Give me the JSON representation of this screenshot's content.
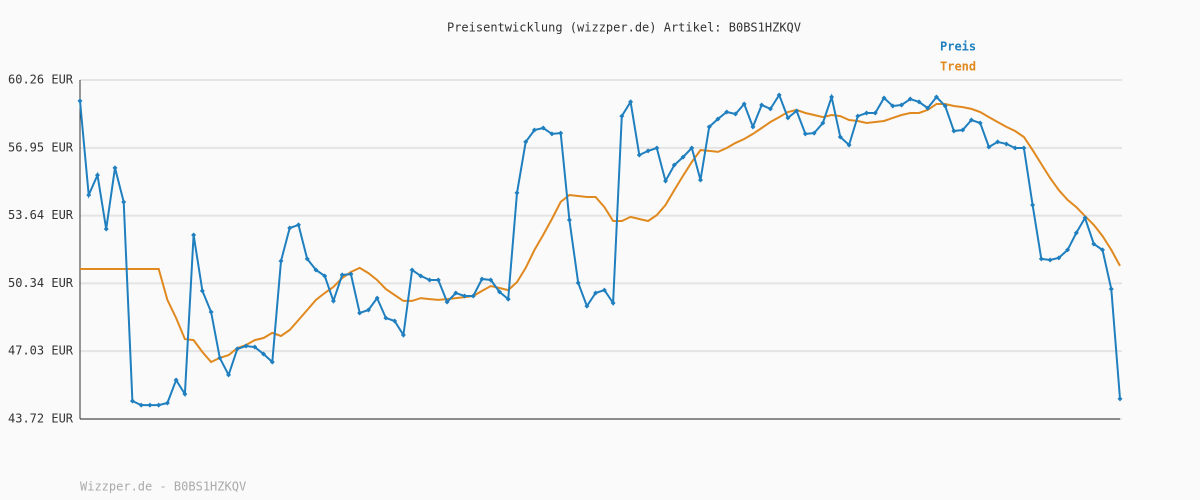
{
  "chart_data": {
    "type": "line",
    "title": "Preisentwicklung (wizzper.de) Artikel: B0BS1HZKQV",
    "footer": "Wizzper.de - B0BS1HZKQV",
    "ylim": [
      43.72,
      60.26
    ],
    "yticks": [
      {
        "value": 43.72,
        "label": "43.72 EUR"
      },
      {
        "value": 47.03,
        "label": "47.03 EUR"
      },
      {
        "value": 50.34,
        "label": "50.34 EUR"
      },
      {
        "value": 53.64,
        "label": "53.64 EUR"
      },
      {
        "value": 56.95,
        "label": "56.95 EUR"
      },
      {
        "value": 60.26,
        "label": "60.26 EUR"
      }
    ],
    "grid": true,
    "series": [
      {
        "name": "Preis",
        "color": "#1f7fbf",
        "markers": true,
        "values": [
          59.24,
          54.65,
          55.62,
          52.99,
          55.97,
          54.31,
          44.6,
          44.4,
          44.4,
          44.4,
          44.5,
          45.62,
          44.94,
          52.7,
          49.97,
          48.94,
          46.7,
          45.87,
          47.14,
          47.28,
          47.23,
          46.89,
          46.5,
          51.43,
          53.04,
          53.19,
          51.53,
          50.99,
          50.7,
          49.48,
          50.75,
          50.79,
          48.89,
          49.04,
          49.62,
          48.65,
          48.5,
          47.82,
          50.99,
          50.7,
          50.5,
          50.5,
          49.43,
          49.87,
          49.72,
          49.72,
          50.55,
          50.5,
          49.92,
          49.57,
          54.75,
          57.24,
          57.82,
          57.92,
          57.63,
          57.67,
          53.43,
          50.36,
          49.23,
          49.87,
          50.01,
          49.38,
          58.5,
          59.19,
          56.6,
          56.8,
          56.94,
          55.33,
          56.11,
          56.5,
          56.94,
          55.38,
          57.97,
          58.36,
          58.7,
          58.6,
          59.09,
          57.97,
          59.04,
          58.85,
          59.53,
          58.41,
          58.75,
          57.63,
          57.67,
          58.16,
          59.43,
          57.48,
          57.09,
          58.5,
          58.65,
          58.65,
          59.38,
          58.99,
          59.04,
          59.33,
          59.19,
          58.89,
          59.43,
          58.99,
          57.77,
          57.82,
          58.31,
          58.16,
          56.99,
          57.24,
          57.14,
          56.94,
          56.94,
          54.16,
          51.53,
          51.48,
          51.58,
          51.97,
          52.8,
          53.53,
          52.26,
          51.97,
          50.06,
          44.7
        ]
      },
      {
        "name": "Trend",
        "color": "#e0891f",
        "markers": false,
        "values": [
          51.04,
          51.04,
          51.04,
          51.04,
          51.04,
          51.04,
          51.04,
          51.04,
          51.04,
          51.04,
          49.53,
          48.65,
          47.62,
          47.57,
          46.99,
          46.5,
          46.7,
          46.84,
          47.18,
          47.33,
          47.57,
          47.67,
          47.92,
          47.77,
          48.06,
          48.55,
          49.04,
          49.53,
          49.87,
          50.16,
          50.6,
          50.89,
          51.09,
          50.84,
          50.5,
          50.06,
          49.77,
          49.48,
          49.48,
          49.62,
          49.57,
          49.53,
          49.57,
          49.62,
          49.67,
          49.72,
          49.97,
          50.21,
          50.11,
          50.01,
          50.4,
          51.09,
          51.97,
          52.7,
          53.48,
          54.31,
          54.65,
          54.6,
          54.55,
          54.55,
          54.06,
          53.38,
          53.38,
          53.58,
          53.48,
          53.38,
          53.67,
          54.16,
          54.89,
          55.58,
          56.26,
          56.84,
          56.8,
          56.75,
          56.94,
          57.19,
          57.38,
          57.63,
          57.92,
          58.21,
          58.45,
          58.7,
          58.8,
          58.65,
          58.55,
          58.45,
          58.55,
          58.5,
          58.31,
          58.26,
          58.16,
          58.21,
          58.26,
          58.41,
          58.55,
          58.65,
          58.65,
          58.8,
          59.09,
          59.09,
          58.99,
          58.94,
          58.85,
          58.7,
          58.45,
          58.21,
          57.97,
          57.77,
          57.48,
          56.84,
          56.16,
          55.48,
          54.89,
          54.41,
          54.06,
          53.62,
          53.19,
          52.65,
          51.97,
          51.19
        ]
      }
    ]
  }
}
